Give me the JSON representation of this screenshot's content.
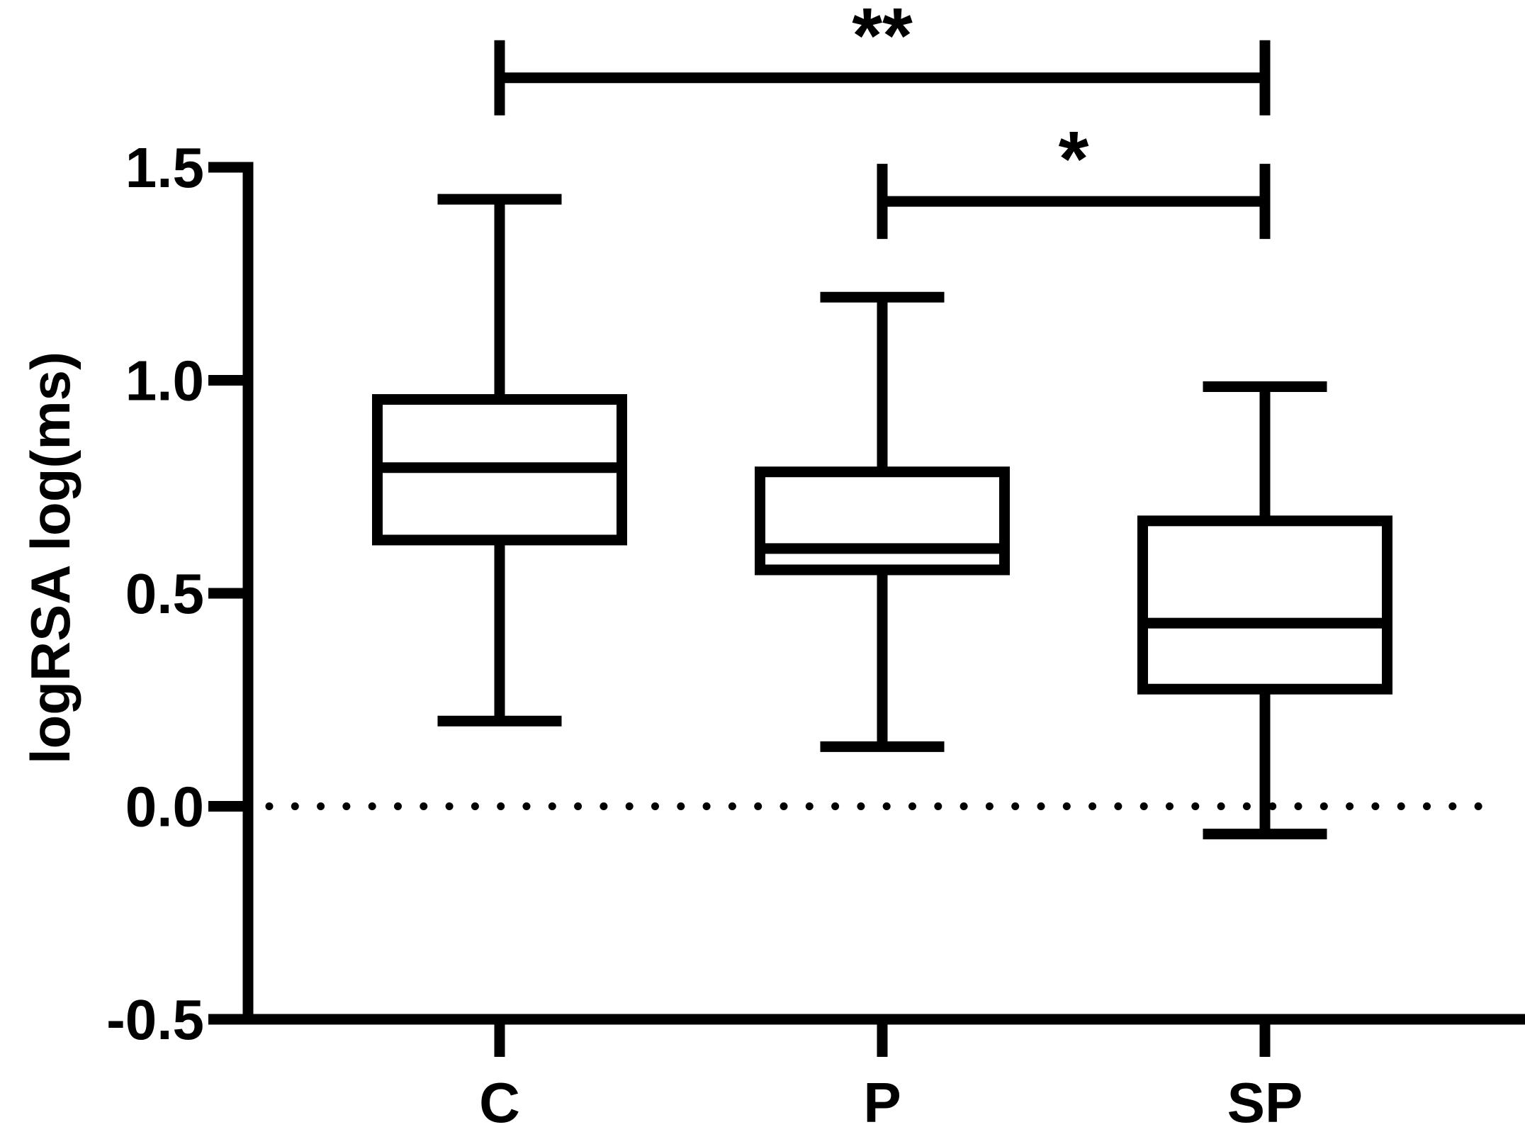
{
  "chart_data": {
    "type": "box",
    "title": "",
    "xlabel": "",
    "ylabel": "logRSA log(ms)",
    "ylim": [
      -0.5,
      1.5
    ],
    "yticks": [
      1.5,
      1.0,
      0.5,
      0.0,
      -0.5
    ],
    "ytick_labels": [
      "1.5",
      "1.0",
      "0.5",
      "0.0",
      "-0.5"
    ],
    "categories": [
      "C",
      "P",
      "SP"
    ],
    "boxes": [
      {
        "category": "C",
        "min": 0.2,
        "q1": 0.625,
        "median": 0.795,
        "q3": 0.955,
        "max": 1.425
      },
      {
        "category": "P",
        "min": 0.14,
        "q1": 0.555,
        "median": 0.605,
        "q3": 0.785,
        "max": 1.195
      },
      {
        "category": "SP",
        "min": -0.065,
        "q1": 0.275,
        "median": 0.43,
        "q3": 0.67,
        "max": 0.985
      }
    ],
    "reference_line": {
      "y": 0.0,
      "style": "dotted"
    },
    "significance": [
      {
        "from": "C",
        "to": "SP",
        "label": "**",
        "level": 1.71
      },
      {
        "from": "P",
        "to": "SP",
        "label": "*",
        "level": 1.42
      }
    ],
    "grid": false,
    "legend": "none",
    "colors": {
      "stroke": "#000000",
      "fill": "#ffffff"
    }
  }
}
